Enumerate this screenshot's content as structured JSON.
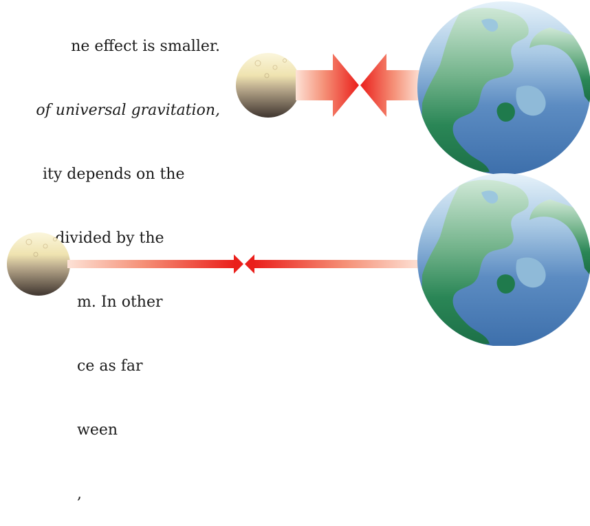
{
  "text": {
    "lines": [
      "ne effect is smaller.",
      "universal gravitation,",
      "ity depends on the",
      "s divided by the",
      "m. In other",
      "ce as far",
      "ween",
      ","
    ],
    "italic_prefix": "of "
  },
  "diagram": {
    "panels": [
      {
        "name": "near",
        "distance": "short",
        "force_arrows": "large"
      },
      {
        "name": "far",
        "distance": "long",
        "force_arrows": "small"
      }
    ],
    "colors": {
      "arrow_red": "#ee2a24",
      "arrow_light": "#fbd8cc",
      "ocean_blue": "#5f8fc4",
      "land_green": "#1e7a4e",
      "moon_light": "#f6ecc0",
      "moon_dark": "#4a3f38"
    }
  }
}
